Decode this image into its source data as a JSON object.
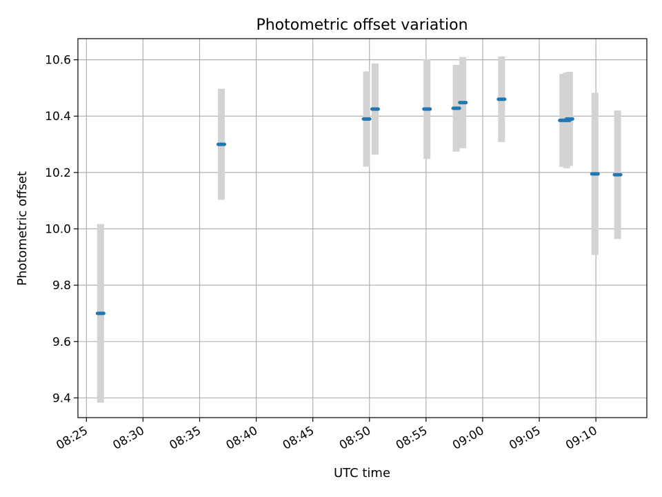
{
  "chart_data": {
    "type": "scatter",
    "title": "Photometric offset variation",
    "xlabel": "UTC time",
    "ylabel": "Photometric offset",
    "xlim": [
      "08:24:15",
      "09:14:30"
    ],
    "ylim": [
      9.33,
      10.675
    ],
    "x_ticks": [
      "08:25",
      "08:30",
      "08:35",
      "08:40",
      "08:45",
      "08:50",
      "08:55",
      "09:00",
      "09:05",
      "09:10"
    ],
    "y_ticks": [
      "9.4",
      "9.6",
      "9.8",
      "10.0",
      "10.2",
      "10.4",
      "10.6"
    ],
    "grid": true,
    "colors": {
      "marker": "#1f77b4",
      "errorbar": "#d3d3d3",
      "grid": "#b0b0b0"
    },
    "points": [
      {
        "time": "08:26:15",
        "y": 9.7,
        "yerr": 0.317
      },
      {
        "time": "08:36:55",
        "y": 10.3,
        "yerr": 0.197
      },
      {
        "time": "08:49:45",
        "y": 10.39,
        "yerr": 0.169
      },
      {
        "time": "08:50:30",
        "y": 10.425,
        "yerr": 0.162
      },
      {
        "time": "08:55:05",
        "y": 10.425,
        "yerr": 0.177
      },
      {
        "time": "08:57:40",
        "y": 10.428,
        "yerr": 0.154
      },
      {
        "time": "08:58:15",
        "y": 10.448,
        "yerr": 0.162
      },
      {
        "time": "09:01:40",
        "y": 10.46,
        "yerr": 0.152
      },
      {
        "time": "09:07:05",
        "y": 10.385,
        "yerr": 0.165
      },
      {
        "time": "09:07:25",
        "y": 10.385,
        "yerr": 0.17
      },
      {
        "time": "09:07:40",
        "y": 10.39,
        "yerr": 0.167
      },
      {
        "time": "09:09:55",
        "y": 10.195,
        "yerr": 0.288
      },
      {
        "time": "09:11:55",
        "y": 10.192,
        "yerr": 0.228
      }
    ]
  }
}
